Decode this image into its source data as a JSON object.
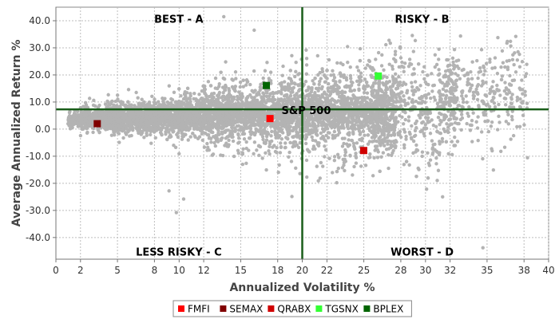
{
  "chart_data": {
    "type": "scatter",
    "xlabel": "Annualized Volatility %",
    "ylabel": "Average Annualized Return %",
    "xlim": [
      0,
      40.5
    ],
    "ylim": [
      -48,
      45
    ],
    "x_ticks": [
      "0",
      "2",
      "5",
      "8",
      "10",
      "12",
      "15",
      "18",
      "20",
      "22",
      "25",
      "28",
      "30",
      "32",
      "35",
      "38",
      "40"
    ],
    "x_tick_values": [
      0,
      2.02,
      5.06,
      8.1,
      10.13,
      12.15,
      15.19,
      18.23,
      20.25,
      22.28,
      25.31,
      28.35,
      30.38,
      32.4,
      35.44,
      38.48,
      40.5
    ],
    "y_ticks": [
      "-40.0",
      "-30.0",
      "-20.0",
      "-10.0",
      "0.0",
      "10.0",
      "20.0",
      "30.0",
      "40.0"
    ],
    "y_tick_values": [
      -40,
      -30,
      -20,
      -10,
      0,
      10,
      20,
      30,
      40
    ],
    "grid": true,
    "reference_lines": {
      "vertical_x": 20.25,
      "horizontal_y": 7.3,
      "color": "#1a5e1a"
    },
    "reference_label": "S&P 500",
    "quadrant_labels": [
      {
        "text": "BEST - A",
        "x": 10.1,
        "y": 40.5
      },
      {
        "text": "RISKY - B",
        "x": 30.1,
        "y": 40.5
      },
      {
        "text": "LESS RISKY - C",
        "x": 10.1,
        "y": -45.5
      },
      {
        "text": "WORST - D",
        "x": 30.1,
        "y": -45.5
      }
    ],
    "background_cloud": {
      "color": "#b3b3b3",
      "note_points": [
        [
          13.8,
          41.5
        ],
        [
          16.3,
          36.5
        ],
        [
          35.1,
          -43.8
        ],
        [
          9.3,
          -22.8
        ],
        [
          9.9,
          -30.8
        ],
        [
          10.5,
          -25.8
        ],
        [
          37.8,
          34.2
        ]
      ]
    },
    "series": [
      {
        "name": "FMFI",
        "color": "#ff0000",
        "x": 17.6,
        "y": 3.9
      },
      {
        "name": "SEMAX",
        "color": "#800000",
        "x": 3.4,
        "y": 2.0
      },
      {
        "name": "QRABX",
        "color": "#d00000",
        "x": 25.3,
        "y": -7.9
      },
      {
        "name": "TGSNX",
        "color": "#33ff33",
        "x": 26.5,
        "y": 19.6
      },
      {
        "name": "BPLEX",
        "color": "#006400",
        "x": 17.3,
        "y": 16.1
      }
    ],
    "legend_position": "bottom-center"
  }
}
